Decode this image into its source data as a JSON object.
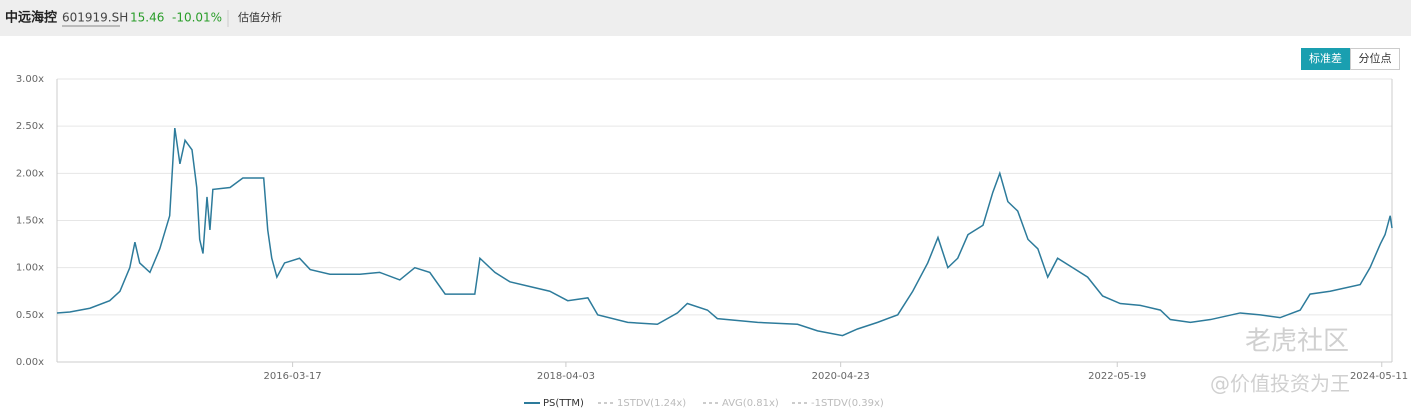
{
  "header": {
    "name": "中远海控",
    "code": "601919.SH",
    "price": "15.46",
    "change": "-10.01%",
    "tab": "估值分析"
  },
  "buttons": [
    "标准差",
    "分位点"
  ],
  "watermark": [
    "老虎社区",
    "@价值投资为王"
  ],
  "chart_data": {
    "type": "line",
    "x": [
      "2014-06-12",
      "2014-07-17",
      "2014-09-10",
      "2014-11-03",
      "2014-12-01",
      "2014-12-28",
      "2015-01-11",
      "2015-01-24",
      "2015-02-21",
      "2015-03-20",
      "2015-04-16",
      "2015-04-30",
      "2015-05-14",
      "2015-05-28",
      "2015-06-16",
      "2015-06-29",
      "2015-07-07",
      "2015-07-16",
      "2015-07-27",
      "2015-08-04",
      "2015-08-12",
      "2015-09-28",
      "2015-11-02",
      "2015-12-29",
      "2016-01-09",
      "2016-01-20",
      "2016-02-03",
      "2016-02-24",
      "2016-04-05",
      "2016-05-04",
      "2016-06-27",
      "2016-09-17",
      "2016-11-10",
      "2017-01-04",
      "2017-02-14",
      "2017-03-27",
      "2017-05-08",
      "2017-07-28",
      "2017-08-11",
      "2017-09-21",
      "2017-11-01",
      "2017-12-25",
      "2018-02-18",
      "2018-04-08",
      "2018-06-02",
      "2018-06-29",
      "2018-09-19",
      "2018-12-09",
      "2019-02-02",
      "2019-03-01",
      "2019-04-25",
      "2019-05-22",
      "2019-09-09",
      "2019-12-27",
      "2020-02-20",
      "2020-04-28",
      "2020-06-08",
      "2020-08-02",
      "2020-09-26",
      "2020-11-06",
      "2020-12-17",
      "2021-01-14",
      "2021-02-10",
      "2021-03-09",
      "2021-04-06",
      "2021-05-17",
      "2021-06-13",
      "2021-07-02",
      "2021-07-24",
      "2021-08-20",
      "2021-09-17",
      "2021-10-14",
      "2021-11-10",
      "2021-12-07",
      "2022-01-17",
      "2022-02-27",
      "2022-04-09",
      "2022-05-27",
      "2022-07-21",
      "2022-09-14",
      "2022-10-11",
      "2022-12-05",
      "2023-01-29",
      "2023-04-20",
      "2023-06-14",
      "2023-08-07",
      "2023-10-01",
      "2023-10-28",
      "2023-12-22",
      "2024-03-13",
      "2024-04-09",
      "2024-05-07",
      "2024-05-20",
      "2024-06-03",
      "2024-06-08"
    ],
    "series": [
      {
        "name": "PS(TTM)",
        "color": "#2d7b9b",
        "values": [
          0.52,
          0.53,
          0.57,
          0.65,
          0.75,
          1.0,
          1.27,
          1.05,
          0.95,
          1.2,
          1.55,
          2.48,
          2.1,
          2.35,
          2.25,
          1.85,
          1.3,
          1.15,
          1.75,
          1.4,
          1.83,
          1.85,
          1.95,
          1.95,
          1.4,
          1.1,
          0.9,
          1.05,
          1.1,
          0.98,
          0.93,
          0.93,
          0.95,
          0.87,
          1.0,
          0.95,
          0.72,
          0.72,
          1.1,
          0.95,
          0.85,
          0.8,
          0.75,
          0.65,
          0.68,
          0.5,
          0.42,
          0.4,
          0.52,
          0.62,
          0.55,
          0.46,
          0.42,
          0.4,
          0.33,
          0.28,
          0.35,
          0.42,
          0.5,
          0.75,
          1.05,
          1.32,
          1.0,
          1.1,
          1.35,
          1.45,
          1.8,
          2.0,
          1.7,
          1.6,
          1.3,
          1.2,
          0.9,
          1.1,
          1.0,
          0.9,
          0.7,
          0.62,
          0.6,
          0.55,
          0.45,
          0.42,
          0.45,
          0.52,
          0.5,
          0.47,
          0.55,
          0.72,
          0.75,
          0.82,
          1.0,
          1.25,
          1.35,
          1.55,
          1.42
        ]
      }
    ],
    "inactive_legend": [
      "1STDV(1.24x)",
      "AVG(0.81x)",
      "-1STDV(0.39x)"
    ],
    "inactive_color": "#bbbbbb",
    "xlim": [
      "2014-06-12",
      "2024-06-08"
    ],
    "xticks": [
      "2016-03-17",
      "2018-04-03",
      "2020-04-23",
      "2022-05-19",
      "2024-05-11"
    ],
    "ylim": [
      0,
      3
    ],
    "yticks": [
      {
        "value": 0,
        "label": "0.00x"
      },
      {
        "value": 0.5,
        "label": "0.50x"
      },
      {
        "value": 1,
        "label": "1.00x"
      },
      {
        "value": 1.5,
        "label": "1.50x"
      },
      {
        "value": 2,
        "label": "2.00x"
      },
      {
        "value": 2.5,
        "label": "2.50x"
      },
      {
        "value": 3,
        "label": "3.00x"
      }
    ],
    "grid": true
  }
}
